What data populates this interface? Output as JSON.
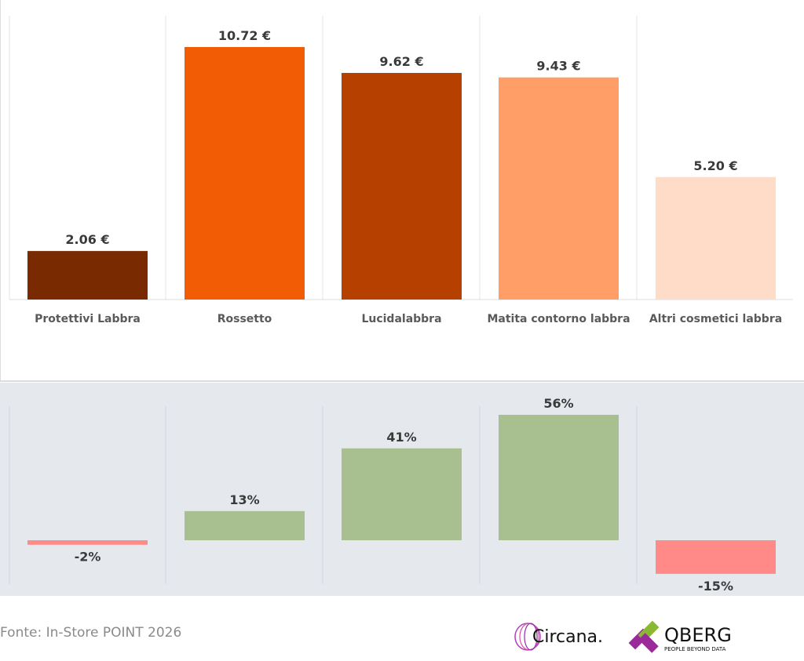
{
  "chart_data": [
    {
      "type": "bar",
      "categories": [
        "Protettivi Labbra",
        "Rossetto",
        "Lucidalabbra",
        "Matita contorno labbra",
        "Altri cosmetici labbra"
      ],
      "values": [
        2.06,
        10.72,
        9.62,
        9.43,
        5.2
      ],
      "labels": [
        "2.06 €",
        "10.72 €",
        "9.62 €",
        "9.43 €",
        "5.20 €"
      ],
      "colors": [
        "#7a2a00",
        "#f25c05",
        "#b54000",
        "#ff9e66",
        "#ffdcc8"
      ],
      "ylim": [
        0,
        11
      ]
    },
    {
      "type": "bar",
      "categories": [
        "Protettivi Labbra",
        "Rossetto",
        "Lucidalabbra",
        "Matita contorno labbra",
        "Altri cosmetici labbra"
      ],
      "values": [
        -2,
        13,
        41,
        56,
        -15
      ],
      "labels": [
        "-2%",
        "13%",
        "41%",
        "56%",
        "-15%"
      ],
      "positive_color": "#a8c090",
      "negative_color": "#ff8a87",
      "ylim": [
        -20,
        60
      ]
    }
  ],
  "footer": {
    "source": "Fonte: In-Store POINT 2026",
    "logos": [
      "Circana.",
      "QBERG",
      "PEOPLE BEYOND DATA"
    ]
  }
}
